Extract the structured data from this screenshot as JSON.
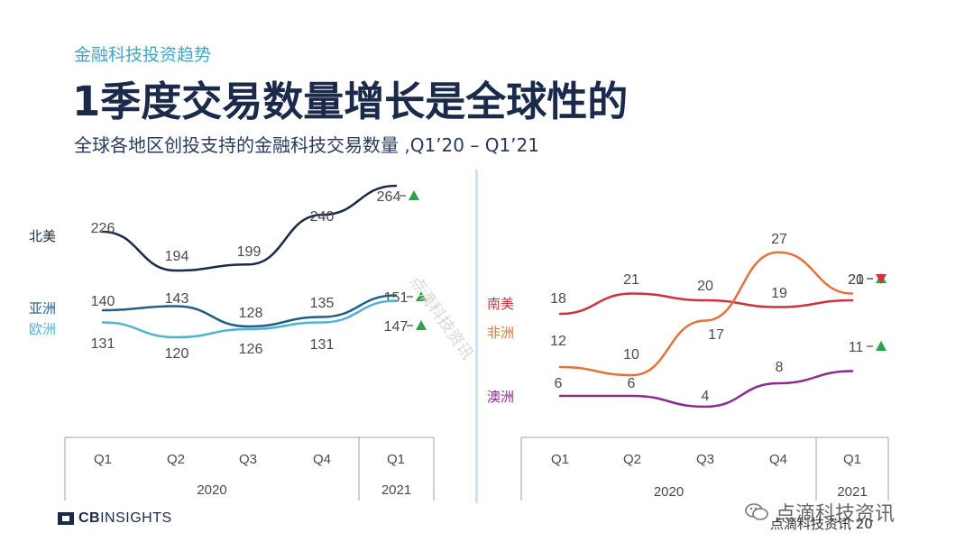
{
  "header": {
    "eyebrow": "金融科技投资趋势",
    "title": "1季度交易数量增长是全球性的",
    "subtitle": "全球各地区创投支持的金融科技交易数量 ,Q1’20 – Q1’21"
  },
  "chart_data": [
    {
      "type": "line",
      "categories": [
        "Q1",
        "Q2",
        "Q3",
        "Q4",
        "Q1"
      ],
      "years": [
        "2020",
        "2021"
      ],
      "series": [
        {
          "name": "北美",
          "values": [
            226,
            194,
            199,
            240,
            264
          ],
          "color": "#1b2a4a",
          "trend": "up"
        },
        {
          "name": "亚洲",
          "values": [
            140,
            143,
            128,
            135,
            151
          ],
          "color": "#1d5f86",
          "trend": "up"
        },
        {
          "name": "欧洲",
          "values": [
            131,
            120,
            126,
            131,
            147
          ],
          "color": "#4fb3d0",
          "trend": "up"
        }
      ]
    },
    {
      "type": "line",
      "categories": [
        "Q1",
        "Q2",
        "Q3",
        "Q4",
        "Q1"
      ],
      "years": [
        "2020",
        "2021"
      ],
      "series": [
        {
          "name": "南美",
          "values": [
            18,
            21,
            20,
            19,
            20
          ],
          "color": "#c9343f",
          "trend": "up"
        },
        {
          "name": "非洲",
          "values": [
            12,
            10,
            17,
            27,
            21
          ],
          "color": "#e2733c",
          "trend": "down"
        },
        {
          "name": "澳洲",
          "values": [
            6,
            6,
            4,
            8,
            11
          ],
          "color": "#8c2a8f",
          "trend": "up"
        }
      ]
    }
  ],
  "footer": {
    "logo_prefix": "CB",
    "logo_suffix": "INSIGHTS",
    "watermark_diag": "点滴科技资讯",
    "watermark_badge": "点滴科技资讯",
    "watermark_bottom": "点滴科技资讯 20"
  },
  "colors": {
    "up": "#2aa34a",
    "down": "#c9343f"
  }
}
